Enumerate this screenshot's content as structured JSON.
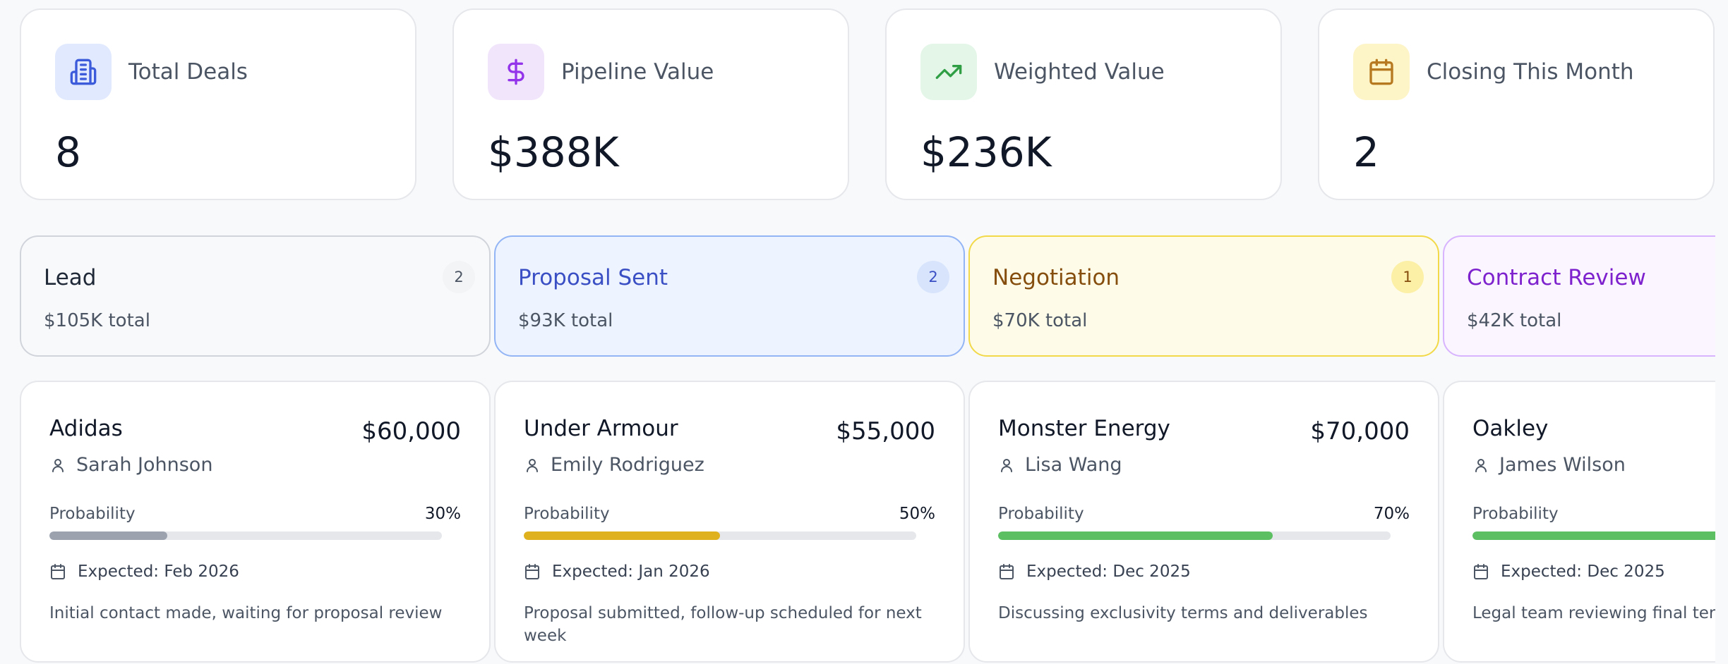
{
  "stats": [
    {
      "label": "Total Deals",
      "value": "8",
      "icon": "building-icon",
      "icon_bg": "#e0e9fd",
      "icon_color": "#3b5bdb"
    },
    {
      "label": "Pipeline Value",
      "value": "$388K",
      "icon": "dollar-icon",
      "icon_bg": "#f1e5fb",
      "icon_color": "#9333ea"
    },
    {
      "label": "Weighted Value",
      "value": "$236K",
      "icon": "trending-up-icon",
      "icon_bg": "#e3f6e7",
      "icon_color": "#2f9e44"
    },
    {
      "label": "Closing This Month",
      "value": "2",
      "icon": "calendar-icon",
      "icon_bg": "#fdf4c7",
      "icon_color": "#b7791f"
    }
  ],
  "columns": [
    {
      "stage": "Lead",
      "count": "2",
      "total": "$105K total",
      "colors": {
        "bg": "#f8f9fb",
        "border": "#d1d5db",
        "title": "#1f2937",
        "badge_bg": "#f3f4f6",
        "badge_text": "#4b5563"
      },
      "deal": {
        "company": "Adidas",
        "amount": "$60,000",
        "owner": "Sarah Johnson",
        "probability_label": "Probability",
        "probability": "30%",
        "probability_value": 30,
        "bar_color": "#9ca3af",
        "expected": "Expected: Feb 2026",
        "note": "Initial contact made, waiting for proposal review"
      }
    },
    {
      "stage": "Proposal Sent",
      "count": "2",
      "total": "$93K total",
      "colors": {
        "bg": "#eef4ff",
        "border": "#93b5f5",
        "title": "#3b4fc4",
        "badge_bg": "#d7e4fb",
        "badge_text": "#3b4fc4"
      },
      "deal": {
        "company": "Under Armour",
        "amount": "$55,000",
        "owner": "Emily Rodriguez",
        "probability_label": "Probability",
        "probability": "50%",
        "probability_value": 50,
        "bar_color": "#e0b11e",
        "expected": "Expected: Jan 2026",
        "note": "Proposal submitted, follow-up scheduled for next week"
      }
    },
    {
      "stage": "Negotiation",
      "count": "1",
      "total": "$70K total",
      "colors": {
        "bg": "#fefce8",
        "border": "#f2d94a",
        "title": "#854d0e",
        "badge_bg": "#fcefa6",
        "badge_text": "#854d0e"
      },
      "deal": {
        "company": "Monster Energy",
        "amount": "$70,000",
        "owner": "Lisa Wang",
        "probability_label": "Probability",
        "probability": "70%",
        "probability_value": 70,
        "bar_color": "#5cc062",
        "expected": "Expected: Dec 2025",
        "note": "Discussing exclusivity terms and deliverables"
      }
    },
    {
      "stage": "Contract Review",
      "count": "",
      "total": "$42K total",
      "colors": {
        "bg": "#faf5ff",
        "border": "#d8b4fe",
        "title": "#7e22ce",
        "badge_bg": "#f3e8ff",
        "badge_text": "#7e22ce"
      },
      "deal": {
        "company": "Oakley",
        "amount": "",
        "owner": "James Wilson",
        "probability_label": "Probability",
        "probability": "",
        "probability_value": 100,
        "bar_color": "#5cc062",
        "expected": "Expected: Dec 2025",
        "note": "Legal team reviewing final terms"
      }
    }
  ]
}
